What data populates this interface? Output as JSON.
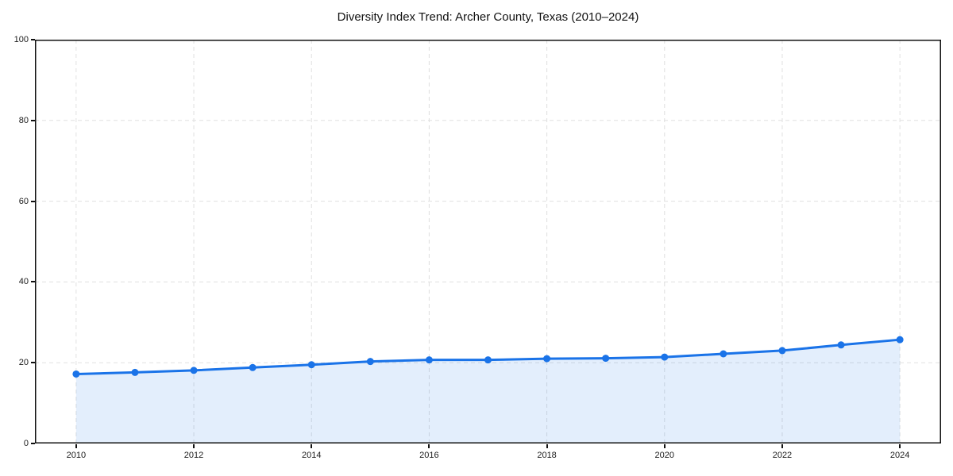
{
  "chart_data": {
    "type": "area",
    "title": "Diversity Index Trend: Archer County, Texas (2010–2024)",
    "xlabel": "",
    "ylabel": "",
    "x": [
      2010,
      2011,
      2012,
      2013,
      2014,
      2015,
      2016,
      2017,
      2018,
      2019,
      2020,
      2021,
      2022,
      2023,
      2024
    ],
    "series": [
      {
        "name": "Diversity Index",
        "values": [
          17.2,
          17.6,
          18.1,
          18.8,
          19.5,
          20.3,
          20.7,
          20.7,
          21.0,
          21.1,
          21.4,
          22.2,
          23.0,
          24.4,
          25.7
        ]
      }
    ],
    "xlim": [
      2009.3,
      2024.7
    ],
    "ylim": [
      0,
      100
    ],
    "x_ticks": [
      2010,
      2012,
      2014,
      2016,
      2018,
      2020,
      2022,
      2024
    ],
    "y_ticks": [
      0,
      20,
      40,
      60,
      80,
      100
    ],
    "grid": true,
    "legend": "none",
    "line_color": "#1a73e8",
    "fill_opacity": 0.12,
    "marker": "circle"
  }
}
